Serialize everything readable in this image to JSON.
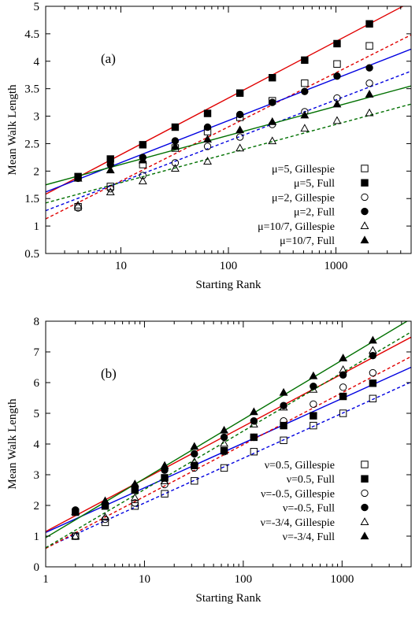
{
  "chart_data": [
    {
      "type": "scatter",
      "panel_label": "(a)",
      "xlabel": "Starting Rank",
      "ylabel": "Mean Walk Length",
      "xscale": "log",
      "xlim": [
        2,
        5000
      ],
      "ylim": [
        0.5,
        5
      ],
      "xticks": [
        10,
        100,
        1000
      ],
      "xtick_labels": [
        "10",
        "100",
        "1000"
      ],
      "yticks": [
        0.5,
        1,
        1.5,
        2,
        2.5,
        3,
        3.5,
        4,
        4.5,
        5
      ],
      "ytick_labels": [
        "0.5",
        "1",
        "1.5",
        "2",
        "2.5",
        "3",
        "3.5",
        "4",
        "4.5",
        "5"
      ],
      "legend_position": "bottom-right",
      "series": [
        {
          "name": "μ=5, Gillespie",
          "marker": "open-square",
          "color": "#000000",
          "x": [
            4,
            8,
            16,
            32,
            64,
            128,
            256,
            512,
            1024,
            2048
          ],
          "y": [
            1.35,
            1.72,
            2.12,
            2.42,
            2.72,
            2.98,
            3.28,
            3.6,
            3.95,
            4.28
          ]
        },
        {
          "name": "μ=5, Full",
          "marker": "filled-square",
          "color": "#000000",
          "x": [
            4,
            8,
            16,
            32,
            64,
            128,
            256,
            512,
            1024,
            2048
          ],
          "y": [
            1.9,
            2.22,
            2.48,
            2.8,
            3.05,
            3.42,
            3.7,
            4.02,
            4.32,
            4.68
          ]
        },
        {
          "name": "μ=2, Gillespie",
          "marker": "open-circle",
          "color": "#000000",
          "x": [
            4,
            8,
            16,
            32,
            64,
            128,
            256,
            512,
            1024,
            2048
          ],
          "y": [
            1.33,
            1.68,
            1.92,
            2.15,
            2.45,
            2.62,
            2.85,
            3.08,
            3.33,
            3.6
          ]
        },
        {
          "name": "μ=2, Full",
          "marker": "filled-circle",
          "color": "#000000",
          "x": [
            4,
            8,
            16,
            32,
            64,
            128,
            256,
            512,
            1024,
            2048
          ],
          "y": [
            1.87,
            2.12,
            2.25,
            2.55,
            2.8,
            3.03,
            3.25,
            3.45,
            3.73,
            3.88
          ]
        },
        {
          "name": "μ=10/7, Gillespie",
          "marker": "open-triangle",
          "color": "#000000",
          "x": [
            4,
            8,
            16,
            32,
            64,
            128,
            256,
            512,
            1024,
            2048
          ],
          "y": [
            1.38,
            1.62,
            1.82,
            2.05,
            2.18,
            2.42,
            2.55,
            2.78,
            2.92,
            3.06
          ]
        },
        {
          "name": "μ=10/7, Full",
          "marker": "filled-triangle",
          "color": "#000000",
          "x": [
            4,
            8,
            16,
            32,
            64,
            128,
            256,
            512,
            1024,
            2048
          ],
          "y": [
            1.87,
            2.02,
            2.2,
            2.45,
            2.58,
            2.75,
            2.9,
            3.02,
            3.22,
            3.4
          ]
        }
      ],
      "fit_lines": [
        {
          "color": "#e00000",
          "dash": "solid",
          "x": [
            2,
            5000
          ],
          "y": [
            1.58,
            5.08
          ]
        },
        {
          "color": "#e00000",
          "dash": "dashed",
          "x": [
            2,
            5000
          ],
          "y": [
            1.13,
            4.48
          ]
        },
        {
          "color": "#0000e0",
          "dash": "solid",
          "x": [
            2,
            5000
          ],
          "y": [
            1.62,
            4.22
          ]
        },
        {
          "color": "#0000e0",
          "dash": "dashed",
          "x": [
            2,
            5000
          ],
          "y": [
            1.28,
            3.82
          ]
        },
        {
          "color": "#007000",
          "dash": "solid",
          "x": [
            2,
            5000
          ],
          "y": [
            1.75,
            3.55
          ]
        },
        {
          "color": "#007000",
          "dash": "dashed",
          "x": [
            2,
            5000
          ],
          "y": [
            1.42,
            3.22
          ]
        }
      ]
    },
    {
      "type": "scatter",
      "panel_label": "(b)",
      "xlabel": "Starting Rank",
      "ylabel": "Mean Walk Length",
      "xscale": "log",
      "xlim": [
        1,
        5000
      ],
      "ylim": [
        0,
        8
      ],
      "xticks": [
        1,
        10,
        100,
        1000
      ],
      "xtick_labels": [
        "1",
        "10",
        "100",
        "1000"
      ],
      "yticks": [
        0,
        1,
        2,
        3,
        4,
        5,
        6,
        7,
        8
      ],
      "ytick_labels": [
        "0",
        "1",
        "2",
        "3",
        "4",
        "5",
        "6",
        "7",
        "8"
      ],
      "legend_position": "bottom-right",
      "series": [
        {
          "name": "ν=0.5, Gillespie",
          "marker": "open-square",
          "color": "#000000",
          "x": [
            2,
            4,
            8,
            16,
            32,
            64,
            128,
            256,
            512,
            1024,
            2048
          ],
          "y": [
            1.0,
            1.45,
            1.98,
            2.38,
            2.8,
            3.22,
            3.75,
            4.12,
            4.6,
            5.0,
            5.48
          ]
        },
        {
          "name": "ν=0.5, Full",
          "marker": "filled-square",
          "color": "#000000",
          "x": [
            2,
            4,
            8,
            16,
            32,
            64,
            128,
            256,
            512,
            1024,
            2048
          ],
          "y": [
            1.78,
            1.98,
            2.5,
            2.9,
            3.3,
            3.78,
            4.22,
            4.6,
            4.92,
            5.55,
            5.98
          ]
        },
        {
          "name": "ν=-0.5, Gillespie",
          "marker": "open-circle",
          "color": "#000000",
          "x": [
            2,
            4,
            8,
            16,
            32,
            64,
            128,
            256,
            512,
            1024,
            2048
          ],
          "y": [
            1.0,
            1.55,
            2.08,
            2.68,
            3.22,
            3.75,
            4.22,
            4.75,
            5.3,
            5.85,
            6.32
          ]
        },
        {
          "name": "ν=-0.5, Full",
          "marker": "filled-circle",
          "color": "#000000",
          "x": [
            2,
            4,
            8,
            16,
            32,
            64,
            128,
            256,
            512,
            1024,
            2048
          ],
          "y": [
            1.85,
            2.05,
            2.62,
            3.15,
            3.68,
            4.22,
            4.75,
            5.25,
            5.88,
            6.25,
            6.88
          ]
        },
        {
          "name": "ν=-3/4, Gillespie",
          "marker": "open-triangle",
          "color": "#000000",
          "x": [
            2,
            4,
            8,
            16,
            32,
            64,
            128,
            256,
            512,
            1024,
            2048
          ],
          "y": [
            1.0,
            1.62,
            2.25,
            2.8,
            3.42,
            4.02,
            4.65,
            5.2,
            5.78,
            6.42,
            7.05
          ]
        },
        {
          "name": "ν=-3/4, Full",
          "marker": "filled-triangle",
          "color": "#000000",
          "x": [
            2,
            4,
            8,
            16,
            32,
            64,
            128,
            256,
            512,
            1024,
            2048
          ],
          "y": [
            1.8,
            2.15,
            2.7,
            3.3,
            3.92,
            4.45,
            5.05,
            5.68,
            6.22,
            6.8,
            7.38
          ]
        }
      ],
      "fit_lines": [
        {
          "color": "#0000e0",
          "dash": "solid",
          "x": [
            1,
            5000
          ],
          "y": [
            1.12,
            6.5
          ]
        },
        {
          "color": "#0000e0",
          "dash": "dashed",
          "x": [
            1,
            5000
          ],
          "y": [
            0.62,
            6.02
          ]
        },
        {
          "color": "#e00000",
          "dash": "solid",
          "x": [
            1,
            5000
          ],
          "y": [
            1.15,
            7.48
          ]
        },
        {
          "color": "#e00000",
          "dash": "dashed",
          "x": [
            1,
            5000
          ],
          "y": [
            0.6,
            6.85
          ]
        },
        {
          "color": "#007000",
          "dash": "solid",
          "x": [
            1,
            5000
          ],
          "y": [
            0.95,
            8.08
          ]
        },
        {
          "color": "#007000",
          "dash": "dashed",
          "x": [
            1,
            5000
          ],
          "y": [
            0.62,
            7.65
          ]
        }
      ]
    }
  ]
}
